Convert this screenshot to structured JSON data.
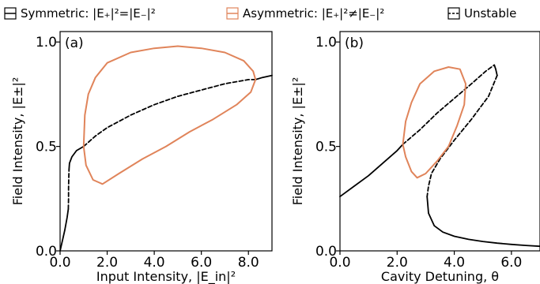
{
  "legend": {
    "items": [
      {
        "label": "Symmetric: |E₊|²=|E₋|²",
        "swatch": "solid",
        "color": "#000000"
      },
      {
        "label": "Asymmetric: |E₊|²≠|E₋|²",
        "swatch": "solid",
        "color": "#e0845a"
      },
      {
        "label": "Unstable",
        "swatch": "dashed",
        "color": "#000000"
      }
    ]
  },
  "chart_data": [
    {
      "type": "line",
      "panel_label": "(a)",
      "xlabel": "Input Intensity, |E_in|²",
      "ylabel": "Field Intensity, |E±|²",
      "xlim": [
        0,
        9
      ],
      "ylim": [
        0,
        1.05
      ],
      "xticks": [
        0,
        2,
        4,
        6,
        8
      ],
      "xtick_labels": [
        "0.0",
        "2.0",
        "4.0",
        "6.0",
        "8.0"
      ],
      "yticks": [
        0,
        0.5,
        1.0
      ],
      "ytick_labels": [
        "0.0",
        "0.5",
        "1.0"
      ],
      "series": [
        {
          "style": "solid",
          "color": "#000000",
          "x": [
            0,
            0.1,
            0.2,
            0.3,
            0.35
          ],
          "y": [
            0,
            0.05,
            0.1,
            0.16,
            0.2
          ]
        },
        {
          "style": "dashed",
          "color": "#000000",
          "x": [
            0.35,
            0.36,
            0.36,
            0.37,
            0.38
          ],
          "y": [
            0.2,
            0.25,
            0.3,
            0.35,
            0.39
          ]
        },
        {
          "style": "solid",
          "color": "#000000",
          "x": [
            0.38,
            0.4,
            0.5,
            0.7,
            1.0
          ],
          "y": [
            0.39,
            0.42,
            0.45,
            0.48,
            0.5
          ]
        },
        {
          "style": "dashed",
          "color": "#000000",
          "x": [
            1.0,
            1.5,
            2.0,
            3.0,
            4.0,
            5.0,
            6.0,
            7.0,
            8.0,
            8.3
          ],
          "y": [
            0.5,
            0.55,
            0.59,
            0.65,
            0.7,
            0.74,
            0.77,
            0.8,
            0.82,
            0.82
          ]
        },
        {
          "style": "solid",
          "color": "#000000",
          "x": [
            8.3,
            8.6,
            9.0
          ],
          "y": [
            0.82,
            0.83,
            0.84
          ]
        },
        {
          "style": "closed",
          "color": "#e0845a",
          "x": [
            1.0,
            1.05,
            1.2,
            1.5,
            2.0,
            3.0,
            4.0,
            5.0,
            6.0,
            7.0,
            7.8,
            8.2,
            8.3,
            8.1,
            7.5,
            6.5,
            5.5,
            4.5,
            3.5,
            2.5,
            1.8,
            1.4,
            1.1,
            1.0
          ],
          "y": [
            0.5,
            0.65,
            0.75,
            0.83,
            0.9,
            0.95,
            0.97,
            0.98,
            0.97,
            0.95,
            0.91,
            0.86,
            0.82,
            0.76,
            0.7,
            0.63,
            0.57,
            0.5,
            0.44,
            0.37,
            0.32,
            0.34,
            0.41,
            0.5
          ]
        }
      ]
    },
    {
      "type": "line",
      "panel_label": "(b)",
      "xlabel": "Cavity Detuning, θ",
      "ylabel": "Field Intensity, |E±|²",
      "xlim": [
        0,
        7
      ],
      "ylim": [
        0,
        1.05
      ],
      "xticks": [
        0,
        2,
        4,
        6
      ],
      "xtick_labels": [
        "0.0",
        "2.0",
        "4.0",
        "6.0"
      ],
      "yticks": [
        0,
        0.5,
        1.0
      ],
      "ytick_labels": [
        "0.0",
        "0.5",
        "1.0"
      ],
      "series": [
        {
          "style": "solid",
          "color": "#000000",
          "x": [
            0,
            0.5,
            1.0,
            1.5,
            2.0,
            2.2
          ],
          "y": [
            0.26,
            0.31,
            0.36,
            0.42,
            0.48,
            0.51
          ]
        },
        {
          "style": "dashed",
          "color": "#000000",
          "x": [
            2.2,
            2.8,
            3.4,
            4.0,
            4.6,
            5.1,
            5.4
          ],
          "y": [
            0.51,
            0.58,
            0.66,
            0.73,
            0.8,
            0.86,
            0.89
          ]
        },
        {
          "style": "solid",
          "color": "#000000",
          "x": [
            5.4,
            5.45,
            5.5
          ],
          "y": [
            0.89,
            0.87,
            0.84
          ]
        },
        {
          "style": "dashed",
          "color": "#000000",
          "x": [
            5.5,
            5.2,
            4.6,
            4.0,
            3.5,
            3.2,
            3.1,
            3.05
          ],
          "y": [
            0.84,
            0.74,
            0.63,
            0.53,
            0.44,
            0.37,
            0.31,
            0.26
          ]
        },
        {
          "style": "solid",
          "color": "#000000",
          "x": [
            3.05,
            3.1,
            3.3,
            3.6,
            4.0,
            4.5,
            5.0,
            5.5,
            6.0,
            6.5,
            7.0
          ],
          "y": [
            0.26,
            0.18,
            0.12,
            0.09,
            0.07,
            0.055,
            0.045,
            0.037,
            0.031,
            0.026,
            0.022
          ]
        },
        {
          "style": "closed",
          "color": "#e0845a",
          "x": [
            2.2,
            2.3,
            2.5,
            2.8,
            3.3,
            3.8,
            4.2,
            4.4,
            4.35,
            4.1,
            3.8,
            3.4,
            3.0,
            2.7,
            2.5,
            2.3,
            2.2
          ],
          "y": [
            0.51,
            0.62,
            0.71,
            0.8,
            0.86,
            0.88,
            0.87,
            0.8,
            0.7,
            0.6,
            0.5,
            0.43,
            0.37,
            0.35,
            0.38,
            0.45,
            0.51
          ]
        }
      ]
    }
  ]
}
